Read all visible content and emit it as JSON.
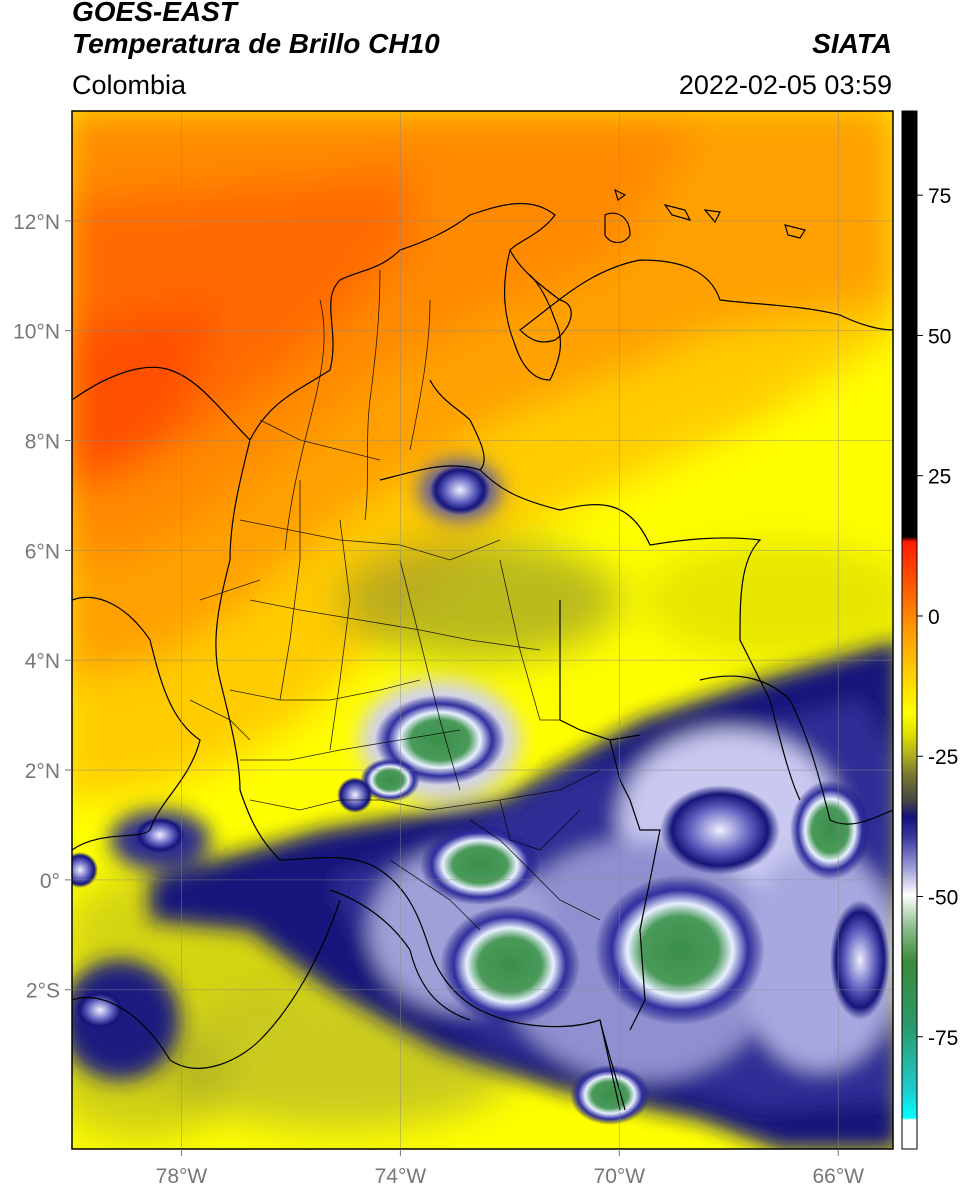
{
  "header": {
    "satellite": "GOES-EAST",
    "product": "Temperatura de Brillo CH10",
    "brand": "SIATA",
    "region": "Colombia",
    "timestamp": "2022-02-05 03:59"
  },
  "map": {
    "lon_range": [
      -80,
      -65
    ],
    "lat_range": [
      -4.9,
      14.0
    ],
    "lon_ticks": [
      {
        "value": -78,
        "label": "78°W"
      },
      {
        "value": -74,
        "label": "74°W"
      },
      {
        "value": -70,
        "label": "70°W"
      },
      {
        "value": -66,
        "label": "66°W"
      }
    ],
    "lat_ticks": [
      {
        "value": 12,
        "label": "12°N"
      },
      {
        "value": 10,
        "label": "10°N"
      },
      {
        "value": 8,
        "label": "8°N"
      },
      {
        "value": 6,
        "label": "6°N"
      },
      {
        "value": 4,
        "label": "4°N"
      },
      {
        "value": 2,
        "label": "2°N"
      },
      {
        "value": 0,
        "label": "0°"
      },
      {
        "value": -2,
        "label": "2°S"
      }
    ]
  },
  "colorbar": {
    "range": [
      -95,
      90
    ],
    "ticks": [
      {
        "value": 75,
        "label": "75"
      },
      {
        "value": 50,
        "label": "50"
      },
      {
        "value": 25,
        "label": "25"
      },
      {
        "value": 0,
        "label": "0"
      },
      {
        "value": -25,
        "label": "-25"
      },
      {
        "value": -50,
        "label": "-50"
      },
      {
        "value": -75,
        "label": "-75"
      }
    ],
    "colors": {
      "top_black": "#000000",
      "red": "#ff2a00",
      "orange": "#ff9a00",
      "yellow": "#ffff00",
      "olive": "#b8b820",
      "dark_blue": "#12127a",
      "white": "#ffffff",
      "green": "#3a8f3a",
      "teal": "#20c0a0",
      "cyan": "#10e0e0"
    }
  }
}
